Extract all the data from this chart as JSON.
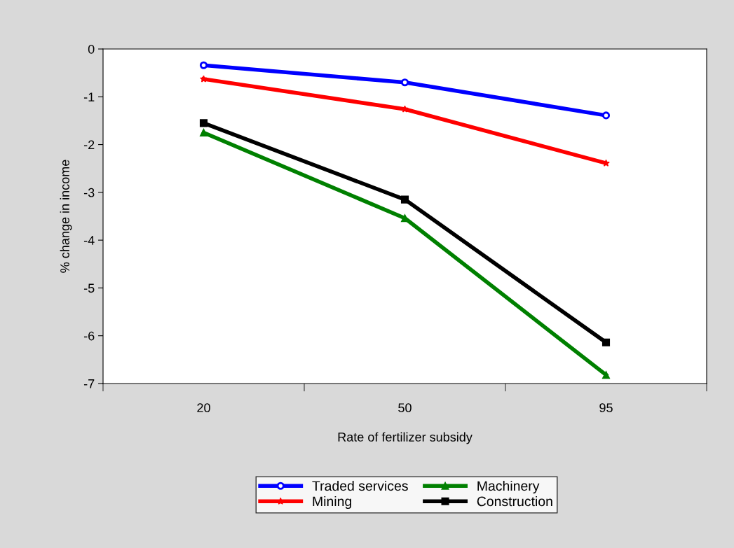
{
  "chart_data": {
    "type": "line",
    "xlabel": "Rate of fertilizer subsidy",
    "ylabel": "% change in income",
    "categories": [
      "20",
      "50",
      "95"
    ],
    "series": [
      {
        "name": "Traded services",
        "color": "#0000ff",
        "marker": "circle",
        "values": [
          -0.34,
          -0.7,
          -1.39
        ]
      },
      {
        "name": "Mining",
        "color": "#ff0000",
        "marker": "star",
        "values": [
          -0.63,
          -1.26,
          -2.39
        ]
      },
      {
        "name": "Machinery",
        "color": "#008000",
        "marker": "triangle",
        "values": [
          -1.75,
          -3.54,
          -6.82
        ]
      },
      {
        "name": "Construction",
        "color": "#000000",
        "marker": "square",
        "values": [
          -1.55,
          -3.15,
          -6.14
        ]
      }
    ],
    "ylim": [
      -7,
      0
    ],
    "yticks": [
      {
        "value": -7,
        "label": "-7"
      },
      {
        "value": -6,
        "label": "-6"
      },
      {
        "value": -5,
        "label": "-5"
      },
      {
        "value": -4,
        "label": "-4"
      },
      {
        "value": -3,
        "label": "-3"
      },
      {
        "value": -2,
        "label": "-2"
      },
      {
        "value": -1,
        "label": "-1"
      },
      0
    ],
    "grid": false,
    "legend": "bottom",
    "line_style": "solid"
  }
}
